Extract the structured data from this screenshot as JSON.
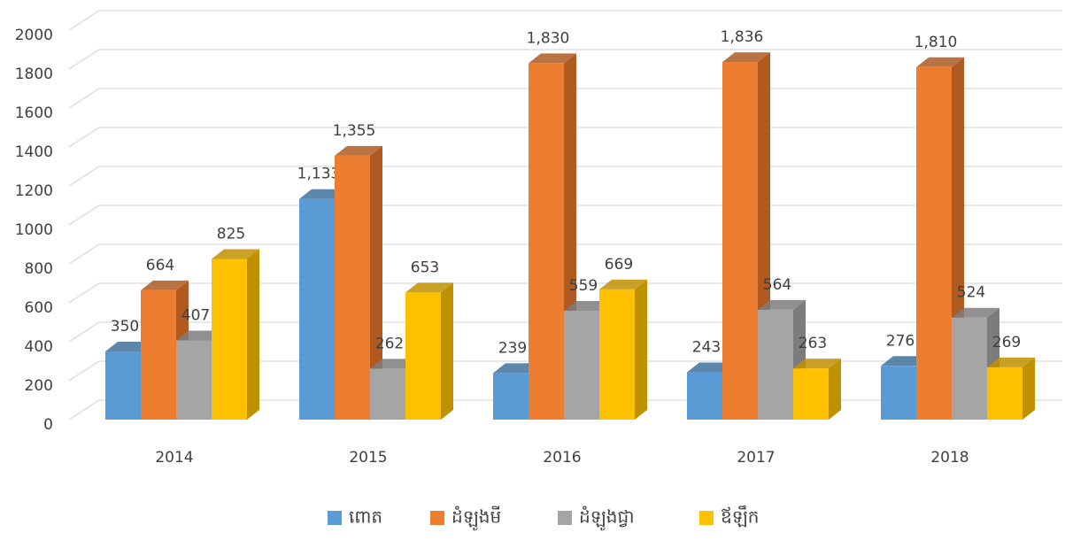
{
  "chart_data": {
    "type": "bar3d",
    "categories": [
      "2014",
      "2015",
      "2016",
      "2017",
      "2018"
    ],
    "series": [
      {
        "name": "ពោត",
        "color": "#5b9bd5",
        "side_color": "#41719c",
        "values": [
          350,
          1133,
          239,
          243,
          276
        ],
        "value_labels": [
          "350",
          "1,133",
          "239",
          "243",
          "276"
        ]
      },
      {
        "name": "ដំឡូងមី",
        "color": "#ed7d31",
        "side_color": "#ae5a21",
        "values": [
          664,
          1355,
          1830,
          1836,
          1810
        ],
        "value_labels": [
          "664",
          "1,355",
          "1,830",
          "1,836",
          "1,810"
        ]
      },
      {
        "name": "ដំឡូងជ្វា",
        "color": "#a5a5a5",
        "side_color": "#7c7c7c",
        "values": [
          407,
          262,
          559,
          564,
          524
        ],
        "value_labels": [
          "407",
          "262",
          "559",
          "564",
          "524"
        ]
      },
      {
        "name": "ឪឡឹក",
        "color": "#ffc000",
        "side_color": "#bf9000",
        "values": [
          825,
          653,
          669,
          263,
          269
        ],
        "value_labels": [
          "825",
          "653",
          "669",
          "263",
          "269"
        ]
      }
    ],
    "ylim": [
      0,
      2000
    ],
    "yticks": [
      0,
      200,
      400,
      600,
      800,
      1000,
      1200,
      1400,
      1600,
      1800,
      2000
    ],
    "grid": true,
    "legend": "bottom"
  }
}
